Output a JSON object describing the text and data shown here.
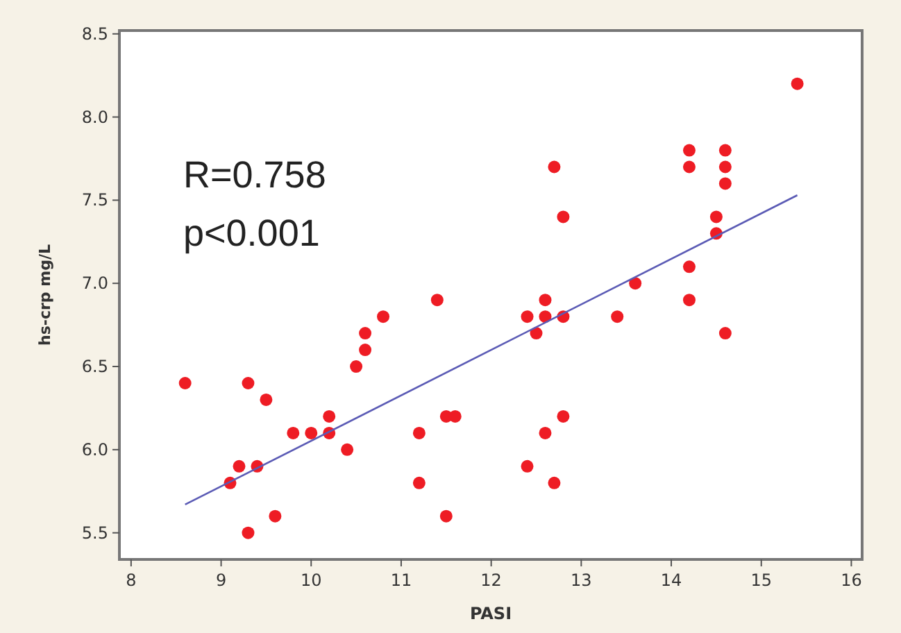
{
  "chart_data": {
    "type": "scatter",
    "xlabel": "PASI",
    "ylabel": "hs-crp mg/L",
    "xlim": [
      7.87,
      16.12
    ],
    "xticks": [
      8,
      9,
      10,
      11,
      12,
      13,
      14,
      15,
      16
    ],
    "ylim": [
      5.34,
      8.52
    ],
    "yticks": [
      {
        "value": 5.5,
        "label": "5.5"
      },
      {
        "value": 6,
        "label": "6.0"
      },
      {
        "value": 6.5,
        "label": "6.5"
      },
      {
        "value": 7,
        "label": "7.0"
      },
      {
        "value": 7.5,
        "label": "7.5"
      },
      {
        "value": 8,
        "label": "8.0"
      },
      {
        "value": 8.5,
        "label": "8.5"
      }
    ],
    "grid": false,
    "marker": "circle",
    "annotations": [
      "R=0.758",
      "p<0.001"
    ],
    "series": [
      {
        "color": "#ee1c24",
        "x": [
          8.6,
          9.1,
          9.2,
          9.3,
          9.3,
          9.4,
          9.5,
          9.6,
          9.8,
          10.0,
          10.2,
          10.2,
          10.4,
          10.5,
          10.6,
          10.6,
          10.8,
          11.2,
          11.2,
          11.4,
          11.5,
          11.6,
          11.5,
          12.4,
          12.4,
          12.5,
          12.6,
          12.6,
          12.6,
          12.7,
          12.7,
          12.8,
          12.8,
          12.8,
          13.4,
          13.6,
          14.2,
          14.2,
          14.2,
          14.2,
          14.5,
          14.5,
          14.6,
          14.6,
          14.6,
          14.6,
          15.4
        ],
        "values": [
          6.4,
          5.8,
          5.9,
          6.4,
          5.5,
          5.9,
          6.3,
          5.6,
          6.1,
          6.1,
          6.2,
          6.1,
          6.0,
          6.5,
          6.6,
          6.7,
          6.8,
          6.1,
          5.8,
          6.9,
          6.2,
          6.2,
          5.6,
          6.8,
          5.9,
          6.7,
          6.9,
          6.8,
          6.1,
          7.7,
          5.8,
          7.4,
          6.8,
          6.2,
          6.8,
          7.0,
          7.8,
          7.7,
          7.1,
          6.9,
          7.4,
          7.3,
          7.8,
          7.7,
          7.6,
          6.7,
          8.2
        ]
      },
      {
        "type": "line",
        "color": "#5b5bb5",
        "marker": "none",
        "x": [
          8.6,
          15.4
        ],
        "values": [
          5.67,
          7.53
        ]
      }
    ]
  }
}
